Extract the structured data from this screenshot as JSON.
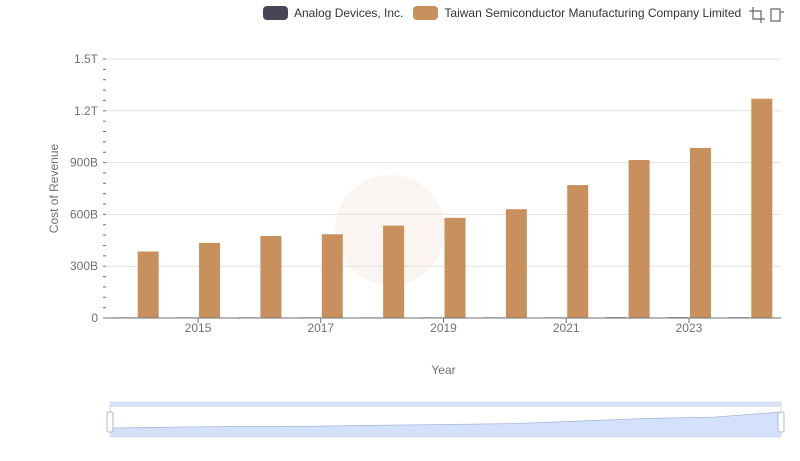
{
  "legend": {
    "series_0": "Analog Devices, Inc.",
    "series_1": "Taiwan Semiconductor Manufacturing Company Limited"
  },
  "toolbox": {
    "zoom_icon": "zoom-icon",
    "restore_icon": "restore-icon"
  },
  "colors": {
    "series_0": "#464657",
    "series_1": "#c8905d",
    "axis": "#6e7079",
    "grid": "#e0e0e0",
    "slider_fill": "#d4e1fb",
    "slider_border": "#a7b8d9"
  },
  "chart_data": {
    "type": "bar",
    "xlabel": "Year",
    "ylabel": "Cost of Revenue",
    "x": [
      2014,
      2015,
      2016,
      2017,
      2018,
      2019,
      2020,
      2021,
      2022,
      2023,
      2024
    ],
    "x_tick_labels": [
      "2015",
      "2017",
      "2019",
      "2021",
      "2023"
    ],
    "x_tick_values": [
      2015,
      2017,
      2019,
      2021,
      2023
    ],
    "ylim": [
      0,
      1500000000000
    ],
    "y_ticks": [
      0,
      300000000000,
      600000000000,
      900000000000,
      1200000000000,
      1500000000000
    ],
    "y_tick_labels": [
      "0",
      "300B",
      "600B",
      "900B",
      "1.2T",
      "1.5T"
    ],
    "series": [
      {
        "name": "Analog Devices, Inc.",
        "values": [
          1000000000,
          1200000000,
          1300000000,
          2000000000,
          2100000000,
          2100000000,
          2300000000,
          2600000000,
          4400000000,
          4400000000,
          4000000000
        ]
      },
      {
        "name": "Taiwan Semiconductor Manufacturing Company Limited",
        "values": [
          385000000000,
          435000000000,
          475000000000,
          485000000000,
          535000000000,
          580000000000,
          630000000000,
          770000000000,
          915000000000,
          985000000000,
          1270000000000
        ]
      }
    ],
    "grid": true,
    "legend_position": "top-right",
    "data_zoom_slider": true
  }
}
